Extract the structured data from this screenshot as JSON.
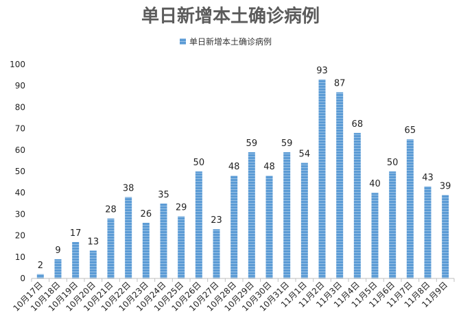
{
  "chart_data": {
    "type": "bar",
    "title": "单日新增本土确诊病例",
    "legend": "单日新增本土确诊病例",
    "legend_position": "top-center",
    "xlabel": "",
    "ylabel": "",
    "ylim": [
      0,
      100
    ],
    "yticks": [
      0,
      10,
      20,
      30,
      40,
      50,
      60,
      70,
      80,
      90,
      100
    ],
    "grid": false,
    "bar_color": "#5b9bd5",
    "categories": [
      "10月17日",
      "10月18日",
      "10月19日",
      "10月20日",
      "10月21日",
      "10月22日",
      "10月23日",
      "10月24日",
      "10月25日",
      "10月26日",
      "10月27日",
      "10月28日",
      "10月29日",
      "10月30日",
      "10月31日",
      "11月1日",
      "11月2日",
      "11月3日",
      "11月4日",
      "11月5日",
      "11月6日",
      "11月7日",
      "11月8日",
      "11月9日"
    ],
    "values": [
      2,
      9,
      17,
      13,
      28,
      38,
      26,
      35,
      29,
      50,
      23,
      48,
      59,
      48,
      59,
      54,
      93,
      87,
      68,
      40,
      50,
      65,
      43,
      39
    ]
  }
}
